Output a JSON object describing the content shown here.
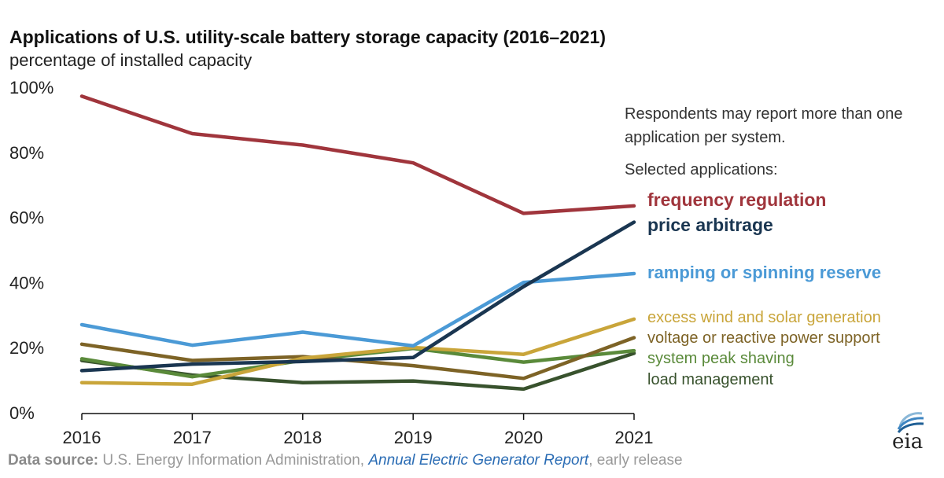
{
  "header": {
    "title": "Applications of U.S. utility-scale battery storage capacity (2016–2021)",
    "subtitle": "percentage of installed capacity"
  },
  "notes": {
    "line1": "Respondents may report more than one application per system.",
    "line2": "Selected applications:"
  },
  "source": {
    "label": "Data source:",
    "text1": "U.S. Energy Information Administration,",
    "link": "Annual Electric Generator Report",
    "text2": ", early release"
  },
  "logo": {
    "text": "eia"
  },
  "chart_data": {
    "type": "line",
    "x": [
      2016,
      2017,
      2018,
      2019,
      2020,
      2021
    ],
    "xlim": [
      2016,
      2021
    ],
    "ylim": [
      0,
      100
    ],
    "yticks": [
      0,
      20,
      40,
      60,
      80,
      100
    ],
    "ytick_labels": [
      "0%",
      "20%",
      "40%",
      "60%",
      "80%",
      "100%"
    ],
    "xtick_labels": [
      "2016",
      "2017",
      "2018",
      "2019",
      "2020",
      "2021"
    ],
    "grid": false,
    "legend_placement": "right, direct labels",
    "series": [
      {
        "name": "frequency regulation",
        "color": "#a0353c",
        "values": [
          97.5,
          86.0,
          82.5,
          77.0,
          61.5,
          63.8
        ]
      },
      {
        "name": "price arbitrage",
        "color": "#1a3651",
        "values": [
          13.2,
          15.2,
          16.0,
          17.2,
          39.0,
          58.8
        ]
      },
      {
        "name": "ramping or spinning reserve",
        "color": "#4b9ad6",
        "values": [
          27.3,
          21.0,
          25.0,
          20.8,
          40.3,
          43.0
        ]
      },
      {
        "name": "excess wind and solar generation",
        "color": "#c9a53a",
        "values": [
          9.5,
          9.0,
          17.0,
          20.3,
          18.2,
          29.0
        ]
      },
      {
        "name": "voltage or reactive power support",
        "color": "#7d6326",
        "values": [
          21.3,
          16.3,
          17.5,
          14.7,
          10.8,
          23.3
        ]
      },
      {
        "name": "system peak shaving",
        "color": "#5a8a3a",
        "values": [
          16.8,
          11.3,
          16.3,
          20.0,
          15.8,
          19.3
        ]
      },
      {
        "name": "load management",
        "color": "#38522d",
        "values": [
          16.3,
          11.8,
          9.5,
          10.0,
          7.5,
          18.5
        ]
      }
    ]
  }
}
